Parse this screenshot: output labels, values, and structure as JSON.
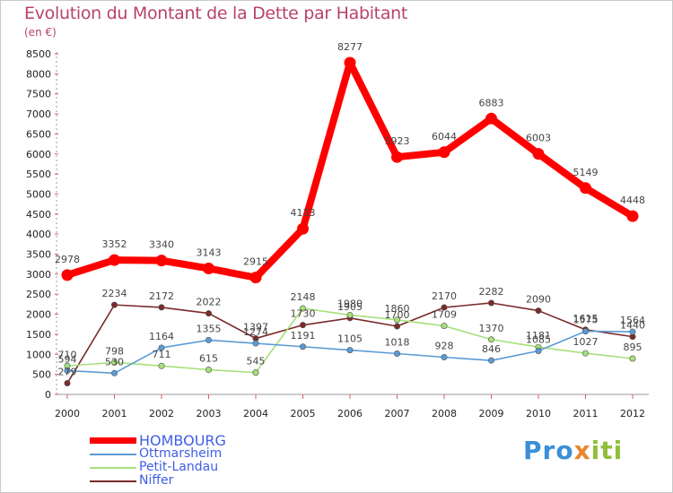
{
  "title": "Evolution du Montant de la Dette par Habitant",
  "unit_label": "(en €)",
  "logo": {
    "part1": "Pro",
    "part2": "x",
    "part3": "iti"
  },
  "chart_data": {
    "type": "line",
    "title": "Evolution du Montant de la Dette par Habitant",
    "ylabel": "(en €)",
    "x": [
      "2000",
      "2001",
      "2002",
      "2003",
      "2004",
      "2005",
      "2006",
      "2007",
      "2008",
      "2009",
      "2010",
      "2011",
      "2012"
    ],
    "ylim": [
      0,
      8500
    ],
    "yticks": [
      0,
      500,
      1000,
      1500,
      2000,
      2500,
      3000,
      3500,
      4000,
      4500,
      5000,
      5500,
      6000,
      6500,
      7000,
      7500,
      8000,
      8500
    ],
    "grid": false,
    "legend_position": "bottom-left",
    "series": [
      {
        "name": "HOMBOURG",
        "color": "#ff0000",
        "values": [
          2978,
          3352,
          3340,
          3143,
          2915,
          4133,
          8277,
          5923,
          6044,
          6883,
          6003,
          5149,
          4448
        ]
      },
      {
        "name": "Ottmarsheim",
        "color": "#5b9bd5",
        "values": [
          594,
          530,
          1164,
          1355,
          1274,
          1191,
          1105,
          1018,
          928,
          846,
          1085,
          1575,
          1564
        ]
      },
      {
        "name": "Petit-Landau",
        "color": "#a6e07a",
        "values": [
          710,
          798,
          711,
          615,
          545,
          2148,
          1980,
          1860,
          1709,
          1370,
          1181,
          1027,
          895
        ]
      },
      {
        "name": "Niffer",
        "color": "#7a2a2a",
        "values": [
          279,
          2234,
          2172,
          2022,
          1397,
          1730,
          1905,
          1700,
          2170,
          2282,
          2090,
          1615,
          1440
        ]
      }
    ]
  }
}
